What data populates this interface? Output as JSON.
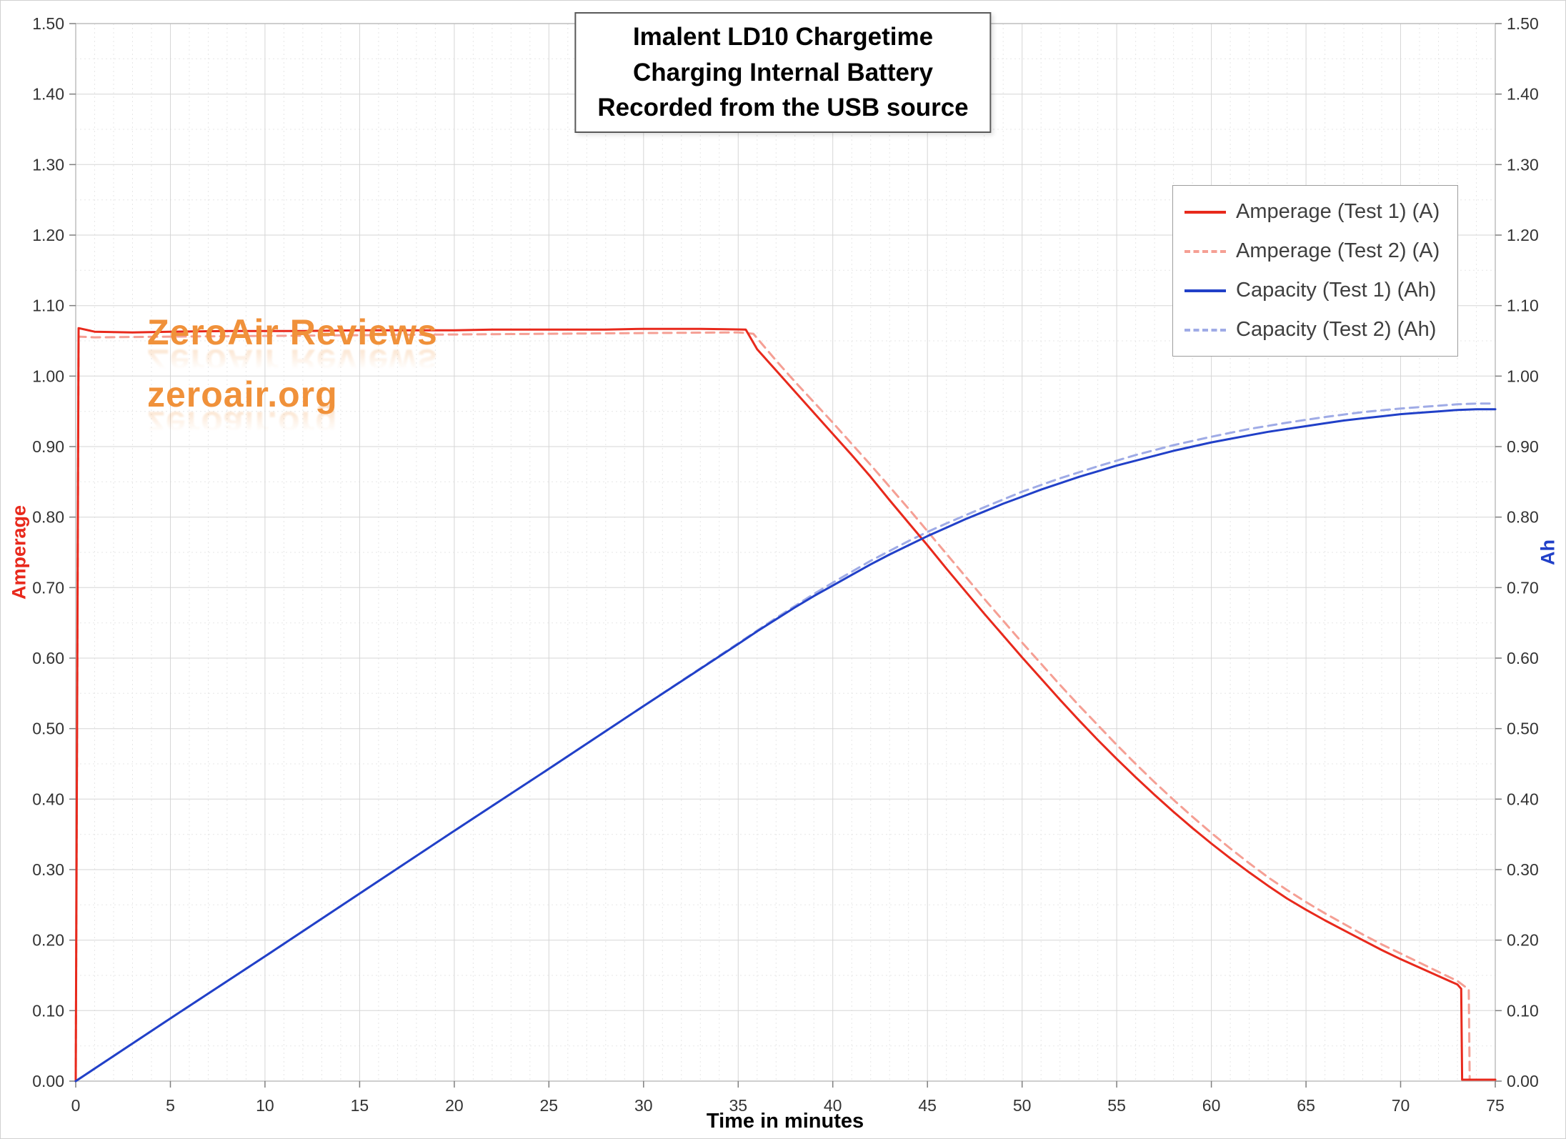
{
  "title": {
    "line1": "Imalent LD10 Chargetime",
    "line2": "Charging Internal Battery",
    "line3": "Recorded from the USB source"
  },
  "watermark": {
    "line1": "ZeroAir Reviews",
    "line2": "zeroair.org",
    "color": "#f0913a"
  },
  "axes": {
    "left_title": "Amperage",
    "left_color": "#e8291c",
    "right_title": "Ah",
    "right_color": "#2140c8",
    "x_title": "Time in minutes",
    "x_ticks": [
      "0",
      "5",
      "10",
      "15",
      "20",
      "25",
      "30",
      "35",
      "40",
      "45",
      "50",
      "55",
      "60",
      "65",
      "70",
      "75"
    ],
    "y_ticks": [
      "0.00",
      "0.10",
      "0.20",
      "0.30",
      "0.40",
      "0.50",
      "0.60",
      "0.70",
      "0.80",
      "0.90",
      "1.00",
      "1.10",
      "1.20",
      "1.30",
      "1.40",
      "1.50"
    ]
  },
  "chart_data": {
    "type": "line",
    "title": "Imalent LD10 Chargetime — Charging Internal Battery — Recorded from the USB source",
    "xlabel": "Time in minutes",
    "ylabel_left": "Amperage",
    "ylabel_right": "Ah",
    "xlim": [
      0,
      75
    ],
    "ylim": [
      0,
      1.5
    ],
    "x_major_step": 5,
    "x_minor_step": 1,
    "y_major_step": 0.1,
    "y_minor_step": 0.05,
    "grid": true,
    "legend_position": "upper-right",
    "series": [
      {
        "name": "Amperage (Test 1) (A)",
        "color": "#e8291c",
        "dash": false,
        "axis": "left",
        "points": [
          [
            0,
            0
          ],
          [
            0.15,
            1.068
          ],
          [
            1,
            1.063
          ],
          [
            3,
            1.062
          ],
          [
            5,
            1.063
          ],
          [
            8,
            1.064
          ],
          [
            10,
            1.064
          ],
          [
            12,
            1.064
          ],
          [
            15,
            1.065
          ],
          [
            18,
            1.065
          ],
          [
            20,
            1.065
          ],
          [
            22,
            1.066
          ],
          [
            25,
            1.066
          ],
          [
            28,
            1.066
          ],
          [
            30,
            1.067
          ],
          [
            33,
            1.067
          ],
          [
            35.4,
            1.066
          ],
          [
            36,
            1.038
          ],
          [
            37,
            1.008
          ],
          [
            38,
            0.978
          ],
          [
            39,
            0.948
          ],
          [
            40,
            0.918
          ],
          [
            41,
            0.888
          ],
          [
            42,
            0.857
          ],
          [
            43,
            0.824
          ],
          [
            44,
            0.792
          ],
          [
            45,
            0.76
          ],
          [
            46,
            0.727
          ],
          [
            47,
            0.695
          ],
          [
            48,
            0.663
          ],
          [
            49,
            0.632
          ],
          [
            50,
            0.601
          ],
          [
            51,
            0.571
          ],
          [
            52,
            0.541
          ],
          [
            53,
            0.512
          ],
          [
            54,
            0.484
          ],
          [
            55,
            0.457
          ],
          [
            56,
            0.431
          ],
          [
            57,
            0.406
          ],
          [
            58,
            0.382
          ],
          [
            59,
            0.359
          ],
          [
            60,
            0.337
          ],
          [
            61,
            0.316
          ],
          [
            62,
            0.296
          ],
          [
            63,
            0.277
          ],
          [
            64,
            0.259
          ],
          [
            65,
            0.243
          ],
          [
            66,
            0.228
          ],
          [
            67,
            0.214
          ],
          [
            68,
            0.2
          ],
          [
            69,
            0.186
          ],
          [
            70,
            0.173
          ],
          [
            71,
            0.161
          ],
          [
            72,
            0.149
          ],
          [
            73,
            0.137
          ],
          [
            73.2,
            0.131
          ],
          [
            73.25,
            0.002
          ],
          [
            75,
            0.002
          ]
        ]
      },
      {
        "name": "Amperage (Test 2) (A)",
        "color": "#f59f94",
        "dash": true,
        "axis": "left",
        "points": [
          [
            0,
            0
          ],
          [
            0.15,
            1.056
          ],
          [
            1,
            1.055
          ],
          [
            5,
            1.056
          ],
          [
            10,
            1.057
          ],
          [
            15,
            1.058
          ],
          [
            20,
            1.059
          ],
          [
            25,
            1.06
          ],
          [
            30,
            1.061
          ],
          [
            35,
            1.062
          ],
          [
            35.8,
            1.06
          ],
          [
            37,
            1.022
          ],
          [
            38,
            0.992
          ],
          [
            39,
            0.963
          ],
          [
            40,
            0.934
          ],
          [
            41,
            0.904
          ],
          [
            42,
            0.874
          ],
          [
            43,
            0.843
          ],
          [
            44,
            0.812
          ],
          [
            45,
            0.78
          ],
          [
            46,
            0.748
          ],
          [
            47,
            0.716
          ],
          [
            48,
            0.684
          ],
          [
            49,
            0.653
          ],
          [
            50,
            0.622
          ],
          [
            51,
            0.592
          ],
          [
            52,
            0.562
          ],
          [
            53,
            0.533
          ],
          [
            54,
            0.505
          ],
          [
            55,
            0.477
          ],
          [
            56,
            0.45
          ],
          [
            57,
            0.424
          ],
          [
            58,
            0.399
          ],
          [
            59,
            0.375
          ],
          [
            60,
            0.352
          ],
          [
            61,
            0.33
          ],
          [
            62,
            0.309
          ],
          [
            63,
            0.289
          ],
          [
            64,
            0.271
          ],
          [
            65,
            0.254
          ],
          [
            66,
            0.238
          ],
          [
            67,
            0.223
          ],
          [
            68,
            0.208
          ],
          [
            69,
            0.194
          ],
          [
            70,
            0.181
          ],
          [
            71,
            0.168
          ],
          [
            72,
            0.155
          ],
          [
            73,
            0.142
          ],
          [
            73.6,
            0.13
          ],
          [
            73.65,
            0.002
          ],
          [
            75,
            0.002
          ]
        ]
      },
      {
        "name": "Capacity (Test 1) (Ah)",
        "color": "#2140c8",
        "dash": false,
        "axis": "right",
        "points": [
          [
            0,
            0
          ],
          [
            5,
            0.089
          ],
          [
            10,
            0.177
          ],
          [
            15,
            0.266
          ],
          [
            20,
            0.355
          ],
          [
            25,
            0.443
          ],
          [
            30,
            0.532
          ],
          [
            35,
            0.62
          ],
          [
            36,
            0.638
          ],
          [
            37,
            0.655
          ],
          [
            38,
            0.672
          ],
          [
            39,
            0.688
          ],
          [
            40,
            0.703
          ],
          [
            41,
            0.718
          ],
          [
            42,
            0.733
          ],
          [
            43,
            0.747
          ],
          [
            44,
            0.76
          ],
          [
            45,
            0.773
          ],
          [
            46,
            0.785
          ],
          [
            47,
            0.797
          ],
          [
            48,
            0.808
          ],
          [
            49,
            0.819
          ],
          [
            50,
            0.829
          ],
          [
            51,
            0.839
          ],
          [
            52,
            0.848
          ],
          [
            53,
            0.857
          ],
          [
            54,
            0.865
          ],
          [
            55,
            0.873
          ],
          [
            56,
            0.88
          ],
          [
            57,
            0.887
          ],
          [
            58,
            0.894
          ],
          [
            59,
            0.9
          ],
          [
            60,
            0.906
          ],
          [
            61,
            0.911
          ],
          [
            62,
            0.916
          ],
          [
            63,
            0.921
          ],
          [
            64,
            0.925
          ],
          [
            65,
            0.929
          ],
          [
            66,
            0.933
          ],
          [
            67,
            0.937
          ],
          [
            68,
            0.94
          ],
          [
            69,
            0.943
          ],
          [
            70,
            0.946
          ],
          [
            71,
            0.948
          ],
          [
            72,
            0.95
          ],
          [
            73,
            0.952
          ],
          [
            74,
            0.953
          ],
          [
            75,
            0.953
          ]
        ]
      },
      {
        "name": "Capacity (Test 2) (Ah)",
        "color": "#9fabe6",
        "dash": true,
        "axis": "right",
        "points": [
          [
            0,
            0
          ],
          [
            5,
            0.089
          ],
          [
            10,
            0.177
          ],
          [
            15,
            0.266
          ],
          [
            20,
            0.355
          ],
          [
            25,
            0.443
          ],
          [
            30,
            0.532
          ],
          [
            35,
            0.621
          ],
          [
            37,
            0.657
          ],
          [
            39,
            0.691
          ],
          [
            40,
            0.707
          ],
          [
            42,
            0.738
          ],
          [
            44,
            0.766
          ],
          [
            45,
            0.779
          ],
          [
            46,
            0.791
          ],
          [
            48,
            0.814
          ],
          [
            50,
            0.836
          ],
          [
            52,
            0.855
          ],
          [
            54,
            0.872
          ],
          [
            55,
            0.88
          ],
          [
            56,
            0.888
          ],
          [
            58,
            0.902
          ],
          [
            60,
            0.914
          ],
          [
            62,
            0.925
          ],
          [
            64,
            0.934
          ],
          [
            65,
            0.938
          ],
          [
            66,
            0.942
          ],
          [
            68,
            0.949
          ],
          [
            70,
            0.954
          ],
          [
            72,
            0.958
          ],
          [
            73,
            0.96
          ],
          [
            74,
            0.961
          ],
          [
            75,
            0.961
          ]
        ]
      }
    ]
  }
}
